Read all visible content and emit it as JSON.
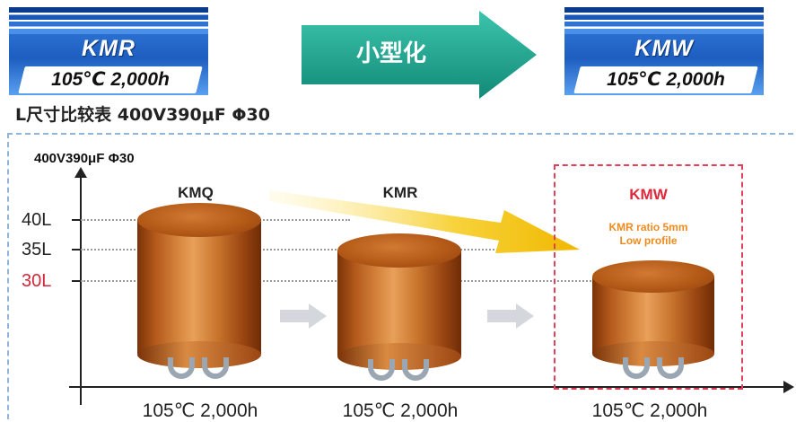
{
  "badges": {
    "left": {
      "series": "KMR",
      "spec": "105℃ 2,000h"
    },
    "right": {
      "series": "KMW",
      "spec": "105℃ 2,000h"
    }
  },
  "arrow_label": "小型化",
  "subtitle": "L尺寸比较表 400V390μF Φ30",
  "diagram": {
    "axis_title": "400V390μF Φ30",
    "levels": [
      "40L",
      "35L",
      "30L"
    ],
    "capacitors": [
      {
        "name": "KMQ",
        "spec": "105℃ 2,000h"
      },
      {
        "name": "KMR",
        "spec": "105℃ 2,000h"
      },
      {
        "name": "KMW",
        "spec": "105℃ 2,000h"
      }
    ],
    "kmw_note_line1": "KMR ratio 5mm",
    "kmw_note_line2": "Low profile"
  },
  "colors": {
    "arrow_teal": "#1aa890",
    "highlight": "#e0405a",
    "capacitor": "#c8742c",
    "badge_blue": "#1d5ec0"
  }
}
